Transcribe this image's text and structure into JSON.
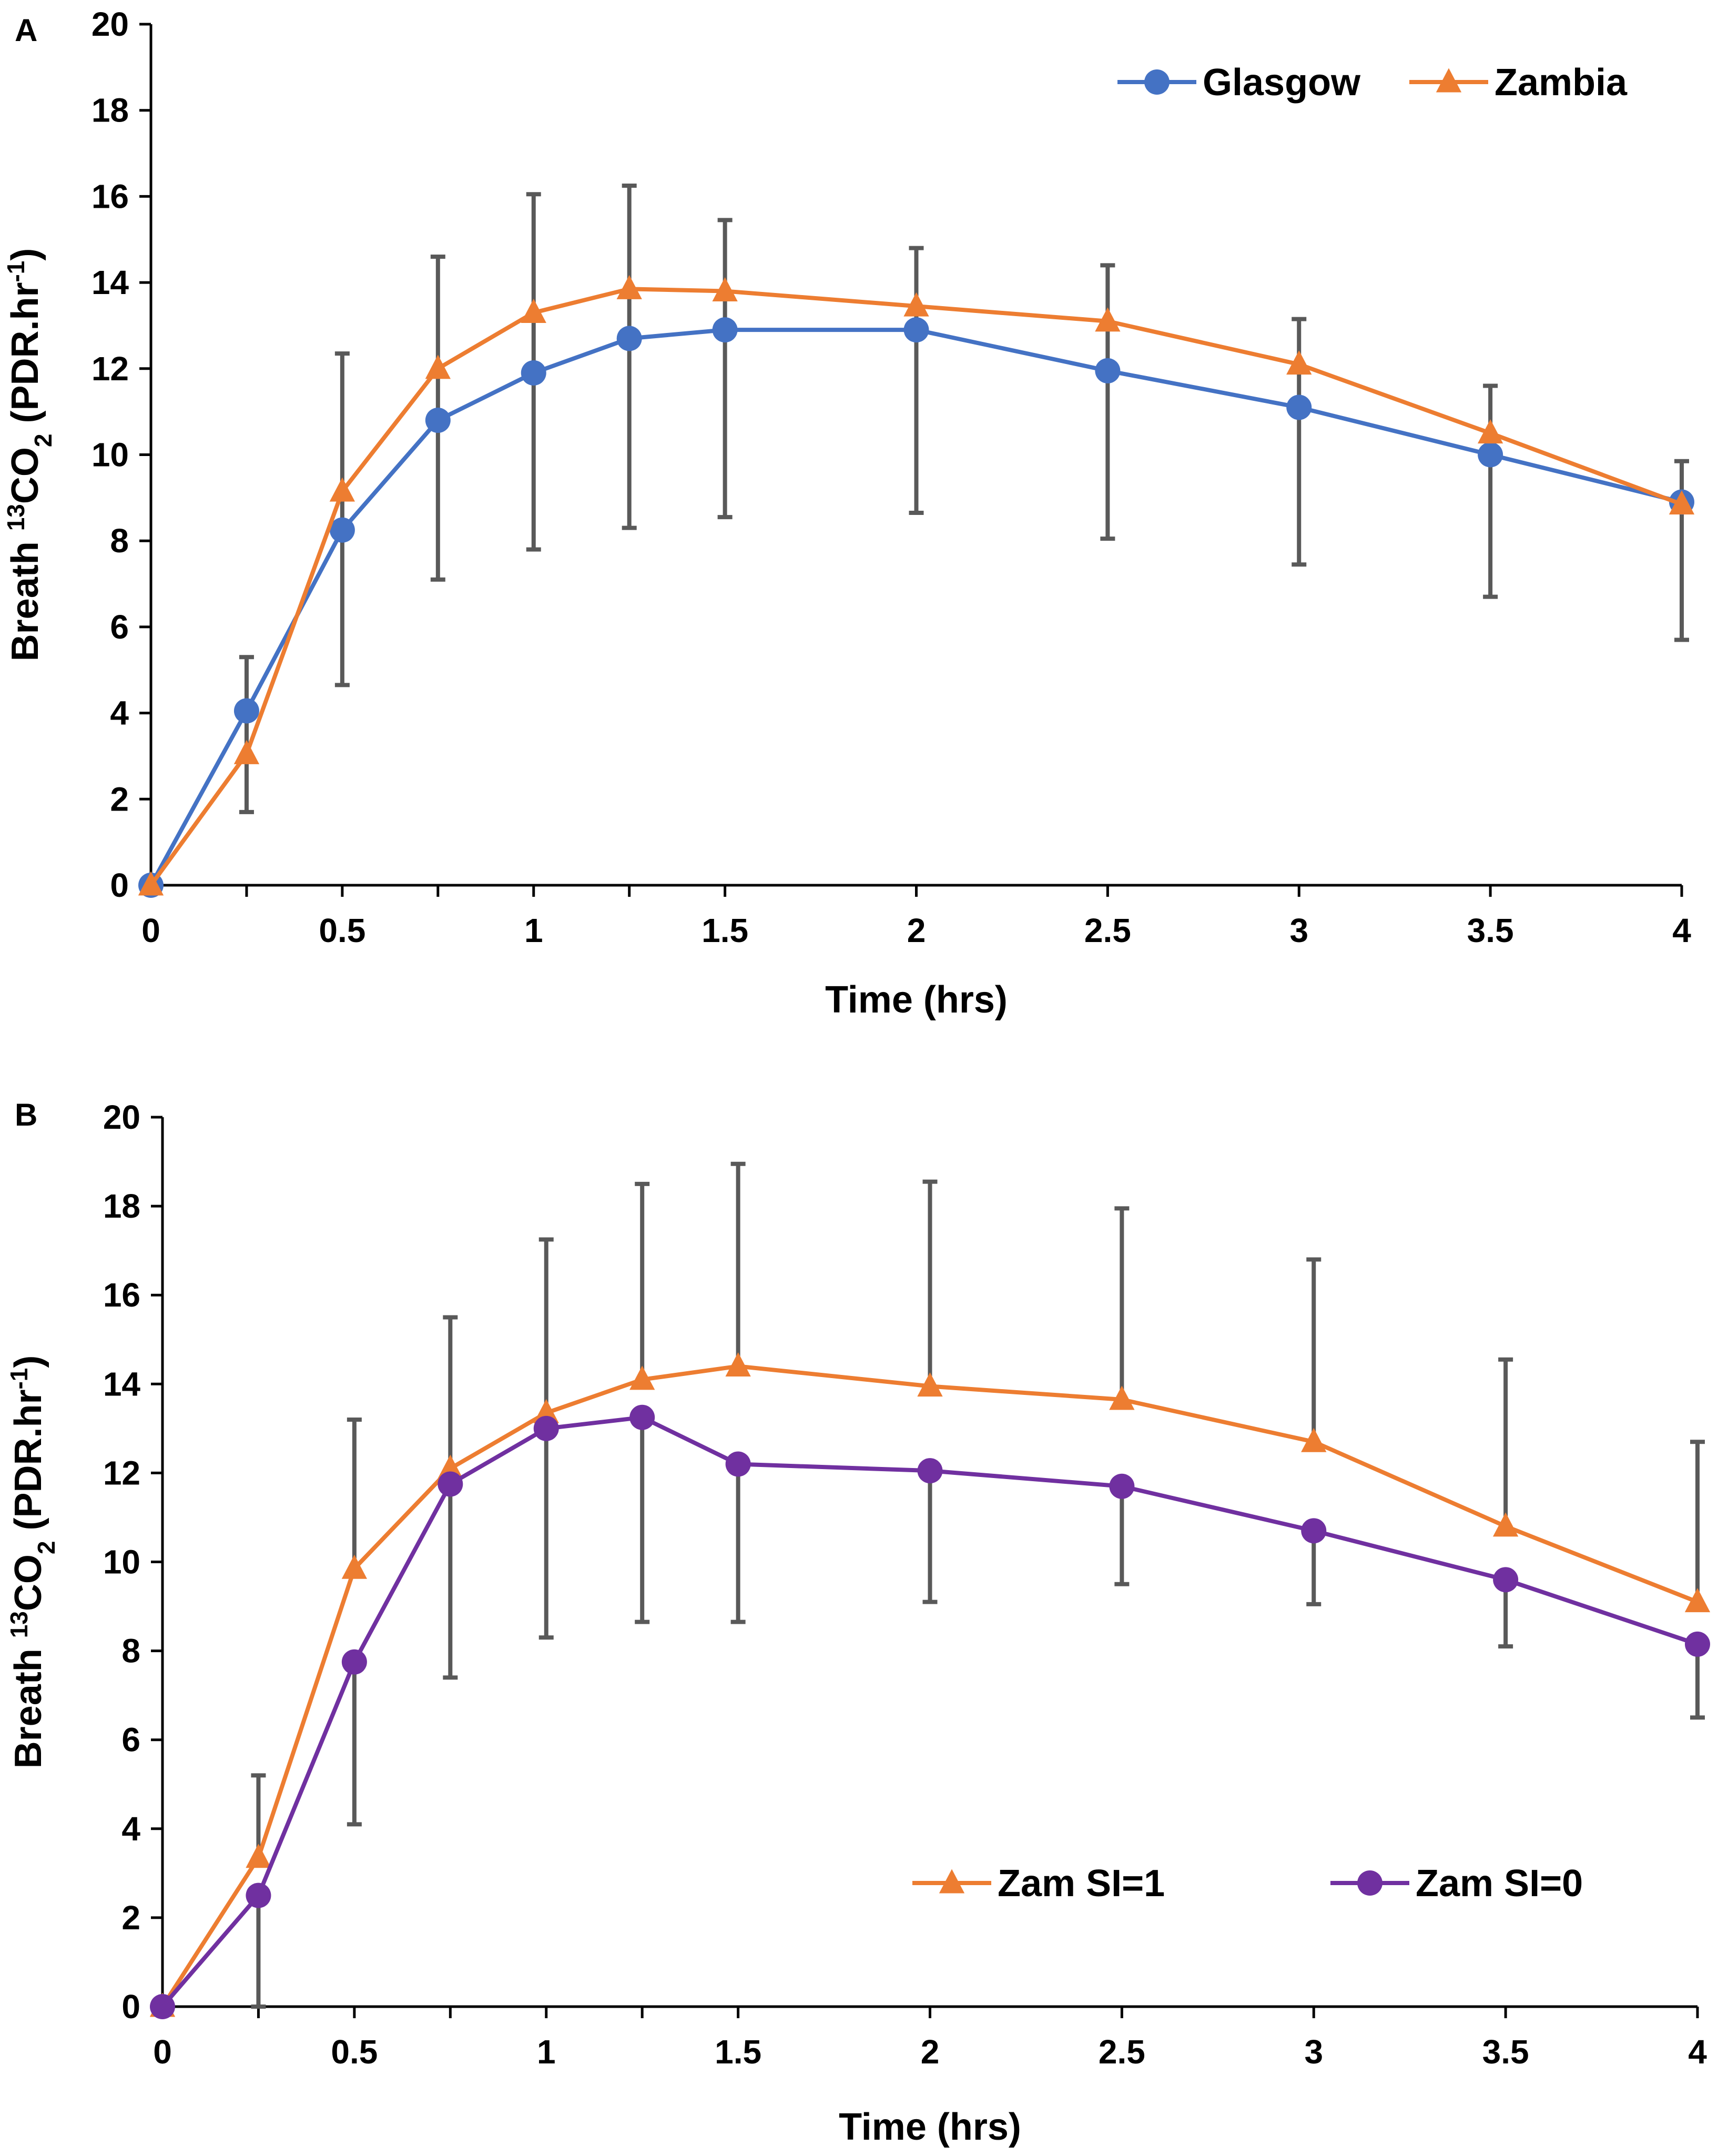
{
  "figure": {
    "panels": [
      "A",
      "B"
    ]
  },
  "chart_data": [
    {
      "type": "line",
      "panel_label": "A",
      "x": [
        0,
        0.25,
        0.5,
        0.75,
        1,
        1.25,
        1.5,
        2,
        2.5,
        3,
        3.5,
        4
      ],
      "x_tick_labels": [
        "0",
        "0.5",
        "1",
        "1.5",
        "2",
        "2.5",
        "3",
        "3.5",
        "4"
      ],
      "x_ticks": [
        0,
        0.5,
        1,
        1.5,
        2,
        2.5,
        3,
        3.5,
        4
      ],
      "y_tick_labels": [
        "0",
        "2",
        "4",
        "6",
        "8",
        "10",
        "12",
        "14",
        "16",
        "18",
        "20"
      ],
      "y_ticks": [
        0,
        2,
        4,
        6,
        8,
        10,
        12,
        14,
        16,
        18,
        20
      ],
      "xlim": [
        0,
        4
      ],
      "ylim": [
        0,
        20
      ],
      "xlabel": "Time (hrs)",
      "ylabel_parts": [
        "Breath ",
        "13",
        "CO",
        "2",
        " (PDR.hr",
        "-1",
        ")"
      ],
      "grid": false,
      "legend_position": "top-right",
      "series": [
        {
          "name": "Glasgow",
          "color": "#4472C4",
          "marker": "circle",
          "values": [
            0,
            4.05,
            8.25,
            10.8,
            11.9,
            12.7,
            12.9,
            12.9,
            11.95,
            11.1,
            10.0,
            8.9
          ],
          "error_upper": [
            null,
            5.3,
            12.35,
            14.6,
            16.05,
            16.25,
            15.45,
            14.8,
            14.4,
            13.15,
            11.6,
            9.85
          ],
          "error_lower": [
            null,
            2.9,
            4.65,
            7.1,
            7.8,
            8.3,
            8.55,
            8.65,
            8.05,
            7.45,
            6.7,
            5.7
          ]
        },
        {
          "name": "Zambia",
          "color": "#ED7D31",
          "marker": "triangle",
          "values": [
            0,
            3.05,
            9.15,
            12.0,
            13.3,
            13.85,
            13.8,
            13.45,
            13.1,
            12.1,
            10.5,
            8.85
          ],
          "error_upper": [
            null,
            null,
            null,
            null,
            null,
            null,
            null,
            null,
            null,
            null,
            null,
            null
          ],
          "error_lower": [
            null,
            1.7,
            null,
            null,
            null,
            null,
            null,
            null,
            null,
            null,
            null,
            null
          ]
        }
      ]
    },
    {
      "type": "line",
      "panel_label": "B",
      "x": [
        0,
        0.25,
        0.5,
        0.75,
        1,
        1.25,
        1.5,
        2,
        2.5,
        3,
        3.5,
        4
      ],
      "x_tick_labels": [
        "0",
        "0.5",
        "1",
        "1.5",
        "2",
        "2.5",
        "3",
        "3.5",
        "4"
      ],
      "x_ticks": [
        0,
        0.5,
        1,
        1.5,
        2,
        2.5,
        3,
        3.5,
        4
      ],
      "y_tick_labels": [
        "0",
        "2",
        "4",
        "6",
        "8",
        "10",
        "12",
        "14",
        "16",
        "18",
        "20"
      ],
      "y_ticks": [
        0,
        2,
        4,
        6,
        8,
        10,
        12,
        14,
        16,
        18,
        20
      ],
      "xlim": [
        0,
        4
      ],
      "ylim": [
        0,
        20
      ],
      "xlabel": "Time (hrs)",
      "ylabel_parts": [
        "Breath ",
        "13",
        "CO",
        "2",
        " (PDR.hr",
        "-1",
        ")"
      ],
      "grid": false,
      "legend_position": "bottom-right",
      "series": [
        {
          "name": "Zam SI=1",
          "color": "#ED7D31",
          "marker": "triangle",
          "values": [
            0,
            3.35,
            9.85,
            12.1,
            13.35,
            14.1,
            14.4,
            13.95,
            13.65,
            12.7,
            10.8,
            9.1
          ],
          "error_upper": [
            null,
            5.2,
            13.2,
            15.5,
            17.25,
            18.5,
            18.95,
            18.55,
            17.95,
            16.8,
            14.55,
            12.7
          ],
          "error_lower": [
            null,
            null,
            null,
            null,
            null,
            null,
            null,
            null,
            null,
            null,
            null,
            null
          ]
        },
        {
          "name": "Zam SI=0",
          "color": "#7030A0",
          "marker": "circle",
          "values": [
            0,
            2.5,
            7.75,
            11.75,
            13.0,
            13.25,
            12.2,
            12.05,
            11.7,
            10.7,
            9.6,
            8.15
          ],
          "error_upper": [
            null,
            null,
            null,
            null,
            null,
            null,
            null,
            null,
            null,
            null,
            null,
            null
          ],
          "error_lower": [
            null,
            0,
            4.1,
            7.4,
            8.3,
            8.65,
            8.65,
            9.1,
            9.5,
            9.05,
            8.1,
            6.5
          ]
        }
      ]
    }
  ]
}
